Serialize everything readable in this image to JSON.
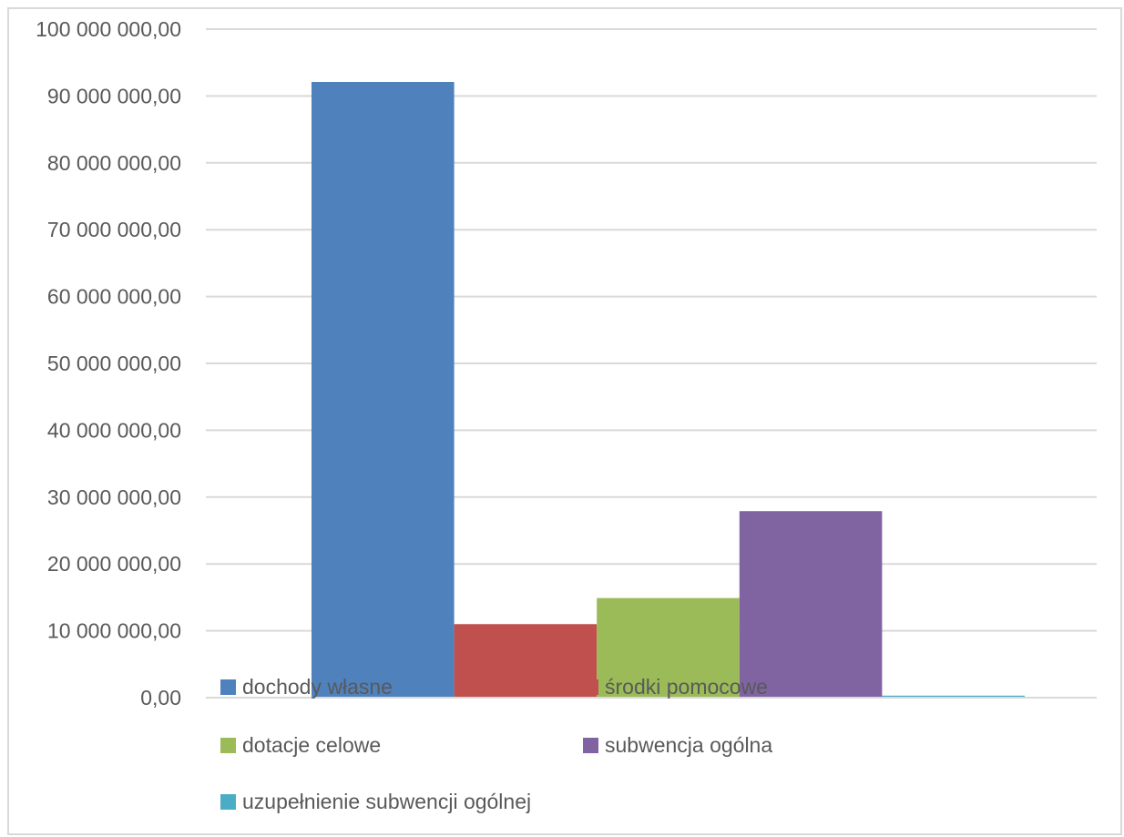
{
  "chart_data": {
    "type": "bar",
    "categories": [
      ""
    ],
    "series": [
      {
        "name": "dochody własne",
        "values": [
          92100000
        ],
        "color": "#4f81bd"
      },
      {
        "name": "środki pomocowe",
        "values": [
          11000000
        ],
        "color": "#c0504d"
      },
      {
        "name": "dotacje celowe",
        "values": [
          14900000
        ],
        "color": "#9bbb59"
      },
      {
        "name": "subwencja ogólna",
        "values": [
          27900000
        ],
        "color": "#8064a2"
      },
      {
        "name": "uzupełnienie subwencji ogólnej",
        "values": [
          300000
        ],
        "color": "#4bacc6"
      }
    ],
    "title": "",
    "xlabel": "",
    "ylabel": "",
    "ylim": [
      0,
      100000000
    ],
    "yticks": [
      {
        "value": 0,
        "label": "0,00"
      },
      {
        "value": 10000000,
        "label": "10 000 000,00"
      },
      {
        "value": 20000000,
        "label": "20 000 000,00"
      },
      {
        "value": 30000000,
        "label": "30 000 000,00"
      },
      {
        "value": 40000000,
        "label": "40 000 000,00"
      },
      {
        "value": 50000000,
        "label": "50 000 000,00"
      },
      {
        "value": 60000000,
        "label": "60 000 000,00"
      },
      {
        "value": 70000000,
        "label": "70 000 000,00"
      },
      {
        "value": 80000000,
        "label": "80 000 000,00"
      },
      {
        "value": 90000000,
        "label": "90 000 000,00"
      },
      {
        "value": 100000000,
        "label": "100 000 000,00"
      }
    ],
    "grid": true,
    "legend_position": "bottom"
  }
}
